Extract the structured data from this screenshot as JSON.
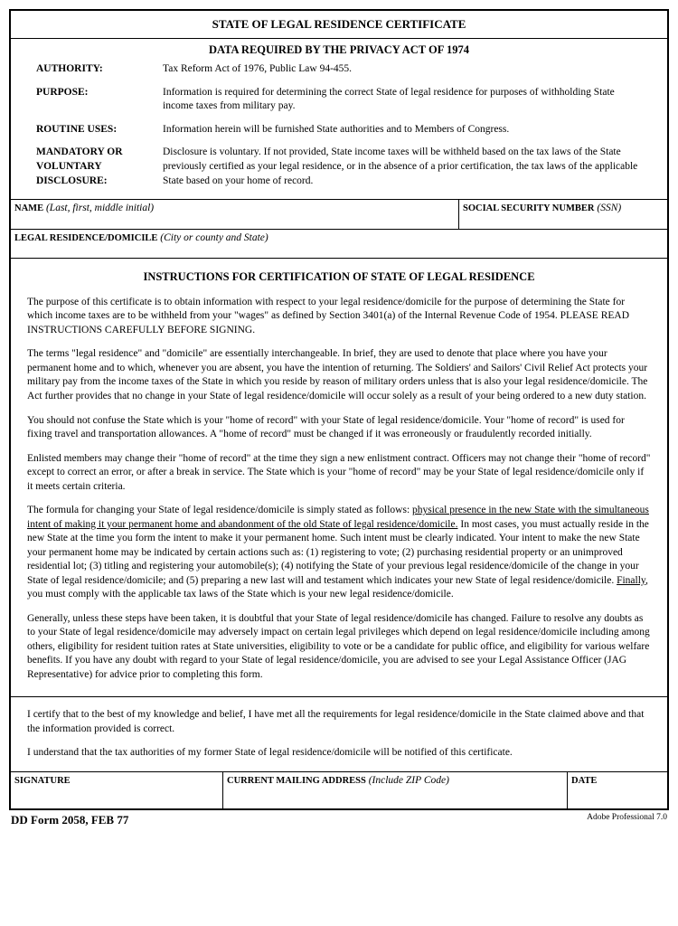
{
  "form": {
    "title": "STATE OF LEGAL RESIDENCE CERTIFICATE",
    "subtitle": "DATA REQUIRED BY THE PRIVACY ACT OF 1974",
    "privacy": {
      "authority_label": "AUTHORITY:",
      "authority": "Tax Reform Act of 1976, Public Law 94-455.",
      "purpose_label": "PURPOSE:",
      "purpose": "Information is required for determining the correct State of legal residence for purposes of withholding State income taxes from military pay.",
      "routine_uses_label": "ROUTINE USES:",
      "routine_uses": "Information herein will be furnished State authorities and to Members of Congress.",
      "disclosure_label": "MANDATORY OR VOLUNTARY DISCLOSURE:",
      "disclosure": "Disclosure is voluntary.  If not provided, State income taxes will be withheld based on the tax laws of the State previously certified as your legal residence, or in the absence of a prior certification, the tax laws of the applicable State based on your home of record."
    },
    "fields": {
      "name_label": "NAME",
      "name_hint": "(Last, first, middle initial)",
      "ssn_label": "SOCIAL SECURITY NUMBER",
      "ssn_hint": "(SSN)",
      "legal_residence_label": "LEGAL RESIDENCE/DOMICILE",
      "legal_residence_hint": "(City or county and State)",
      "signature_label": "SIGNATURE",
      "address_label": "CURRENT MAILING ADDRESS",
      "address_hint": "(Include ZIP Code)",
      "date_label": "DATE"
    },
    "instructions": {
      "title": "INSTRUCTIONS FOR CERTIFICATION OF STATE OF LEGAL RESIDENCE",
      "p1": "The purpose of this certificate is to obtain information with respect to your legal residence/domicile for the purpose of determining the State for which income taxes are to be withheld from your \"wages\" as defined by Section 3401(a) of the Internal Revenue Code of 1954.  PLEASE READ INSTRUCTIONS CAREFULLY BEFORE SIGNING.",
      "p2": "The terms \"legal residence\" and \"domicile\" are essentially interchangeable.  In brief, they are used to denote that place where you have your permanent home and to which, whenever you are absent, you have the intention of returning.  The Soldiers' and Sailors' Civil Relief Act protects your military pay from the income taxes of the State in which you reside by reason of military orders unless that is also your legal residence/domicile.  The Act further provides that no change in your State of legal residence/domicile will occur solely as a result of your being ordered to a new duty station.",
      "p3": "You should not confuse the State which is your \"home of record\" with your State of legal residence/domicile.  Your \"home of record\" is used for fixing travel and transportation allowances.  A \"home of record\" must be changed if it was erroneously or fraudulently recorded initially.",
      "p4": "Enlisted members may change their \"home of record\" at the time they sign a new enlistment contract.  Officers may not change their \"home of record\" except to correct an error, or after a break in service.  The State which is your \"home of record\" may be your State of legal residence/domicile only if it meets certain criteria.",
      "p5_a": "The formula for changing your State of legal residence/domicile is simply stated as follows: ",
      "p5_u": "physical presence in the new State with the simultaneous intent of making it your permanent home and abandonment of the old State of legal residence/domicile.",
      "p5_b": " In most cases, you must actually reside in the new State at the time you form the intent to make it your permanent home.  Such intent must be clearly indicated.  Your intent to make the new State your permanent home may be indicated by certain actions such as: (1) registering to vote; (2) purchasing residential property or an unimproved residential lot; (3) titling and registering your automobile(s); (4) notifying the State of your previous legal residence/domicile of the change in your State of legal residence/domicile; and (5) preparing a new last will and testament which indicates your new State of legal residence/domicile.  ",
      "p5_fin": "Finally",
      "p5_c": ", you must comply with the applicable tax laws of the State which is your new legal residence/domicile.",
      "p6": "Generally, unless these steps have been taken, it is doubtful that your State of legal residence/domicile has changed.  Failure to resolve any doubts as to your State of legal residence/domicile may adversely impact on certain legal privileges which depend on legal residence/domicile including among others, eligibility for resident tuition rates at State universities, eligibility to vote or be a candidate for public office, and eligibility for various welfare benefits.  If you have any doubt with regard to your State of legal residence/domicile, you are advised to see your Legal Assistance Officer (JAG Representative) for advice prior to completing this form."
    },
    "certification": {
      "p1": "I certify that to the best of my knowledge and belief, I have met all the requirements for legal residence/domicile in the State claimed above and that the information provided is correct.",
      "p2": "I understand that the tax authorities of my former State of legal residence/domicile will be notified of this certificate."
    },
    "footer": {
      "form_id": "DD Form 2058, FEB 77",
      "right": "Adobe Professional 7.0"
    }
  }
}
